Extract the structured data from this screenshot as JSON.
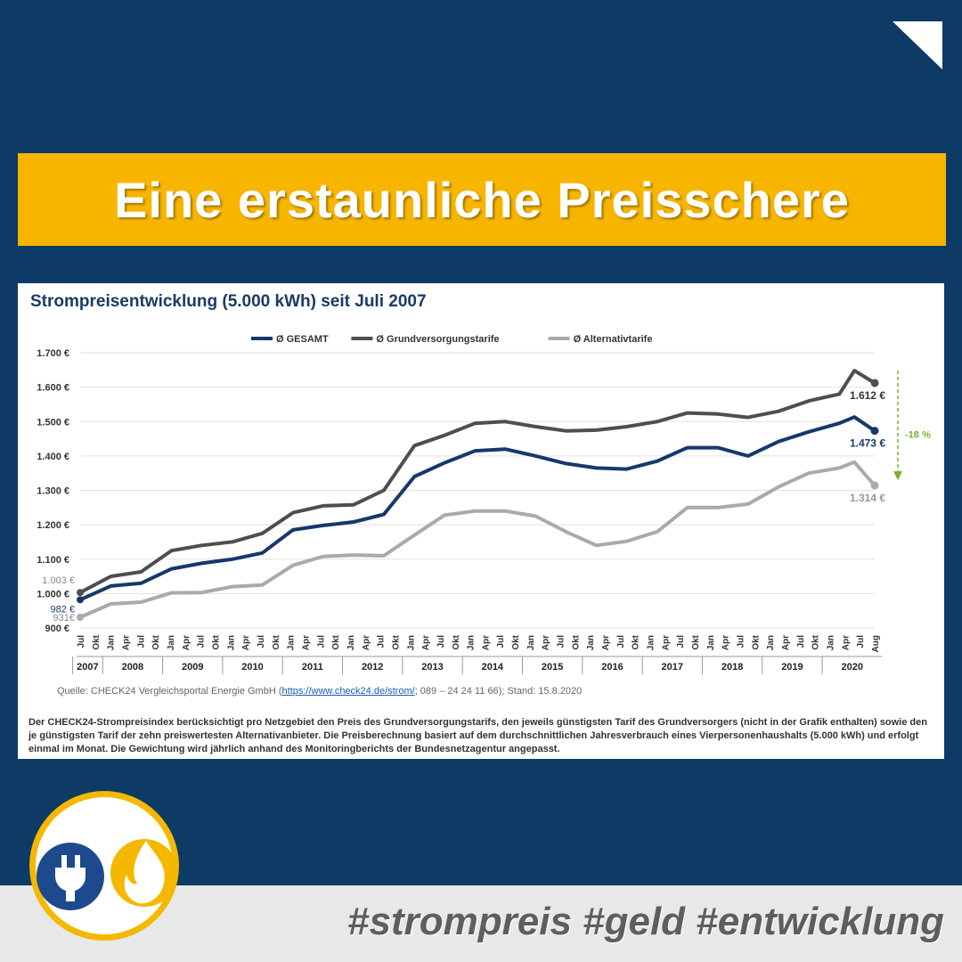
{
  "banner": {
    "title": "Eine erstaunliche Preisschere"
  },
  "chart_data": {
    "type": "line",
    "title": "Strompreisentwicklung (5.000 kWh) seit Juli 2007",
    "ylim": [
      900,
      1700
    ],
    "y_ticks": [
      "900 €",
      "1.000 €",
      "1.100 €",
      "1.200 €",
      "1.300 €",
      "1.400 €",
      "1.500 €",
      "1.600 €",
      "1.700 €"
    ],
    "grid": true,
    "legend_position": "top",
    "x_month_ticks": [
      "Jul",
      "Okt",
      "Jan",
      "Apr",
      "Jul",
      "Okt",
      "Jan",
      "Apr",
      "Jul",
      "Okt",
      "Jan",
      "Apr",
      "Jul",
      "Okt",
      "Jan",
      "Apr",
      "Jul",
      "Okt",
      "Jan",
      "Apr",
      "Jul",
      "Okt",
      "Jan",
      "Apr",
      "Jul",
      "Okt",
      "Jan",
      "Apr",
      "Jul",
      "Okt",
      "Jan",
      "Apr",
      "Jul",
      "Okt",
      "Jan",
      "Apr",
      "Jul",
      "Okt",
      "Jan",
      "Apr",
      "Jul",
      "Okt",
      "Jan",
      "Apr",
      "Jul",
      "Okt",
      "Jan",
      "Apr",
      "Jul",
      "Okt",
      "Jan",
      "Apr",
      "Jul",
      "Aug"
    ],
    "x_years": [
      "2007",
      "2008",
      "2009",
      "2010",
      "2011",
      "2012",
      "2013",
      "2014",
      "2015",
      "2016",
      "2017",
      "2018",
      "2019",
      "2020"
    ],
    "x": [
      "2007-07",
      "2008-01",
      "2008-07",
      "2009-01",
      "2009-07",
      "2010-01",
      "2010-07",
      "2011-01",
      "2011-07",
      "2012-01",
      "2012-07",
      "2013-01",
      "2013-07",
      "2014-01",
      "2014-07",
      "2015-01",
      "2015-07",
      "2016-01",
      "2016-07",
      "2017-01",
      "2017-07",
      "2018-01",
      "2018-07",
      "2019-01",
      "2019-07",
      "2020-01",
      "2020-04",
      "2020-08"
    ],
    "series": [
      {
        "name": "Ø GESAMT",
        "color": "#16386b",
        "values": [
          982,
          1022,
          1030,
          1072,
          1088,
          1100,
          1118,
          1185,
          1198,
          1208,
          1230,
          1340,
          1380,
          1415,
          1420,
          1400,
          1378,
          1365,
          1362,
          1385,
          1424,
          1424,
          1400,
          1442,
          1470,
          1495,
          1513,
          1473
        ]
      },
      {
        "name": "Ø Grundversorgungstarife",
        "color": "#4e4e4e",
        "values": [
          1003,
          1050,
          1063,
          1125,
          1140,
          1150,
          1175,
          1235,
          1255,
          1258,
          1300,
          1430,
          1460,
          1495,
          1500,
          1485,
          1473,
          1475,
          1485,
          1500,
          1525,
          1522,
          1512,
          1530,
          1560,
          1580,
          1648,
          1612
        ]
      },
      {
        "name": "Ø Alternativtarife",
        "color": "#aaaaaa",
        "values": [
          931,
          970,
          975,
          1002,
          1003,
          1020,
          1025,
          1082,
          1108,
          1112,
          1110,
          1170,
          1228,
          1240,
          1240,
          1225,
          1180,
          1140,
          1152,
          1180,
          1250,
          1250,
          1260,
          1310,
          1350,
          1365,
          1382,
          1314
        ]
      }
    ],
    "start_labels": [
      "1.003 €",
      "982 €",
      "931€"
    ],
    "end_labels": [
      "1.612 €",
      "1.473 €",
      "1.314 €"
    ],
    "annotation": "-18 %",
    "annotation_color": "#7ab030"
  },
  "source": {
    "prefix": "Quelle: CHECK24 Vergleichsportal Energie GmbH (",
    "link": "https://www.check24.de/strom/",
    "suffix": "; 089 – 24 24 11 66); Stand: 15.8.2020"
  },
  "note": "Der CHECK24-Strompreisindex berücksichtigt pro Netzgebiet den Preis des Grundversorgungstarifs, den jeweils günstigsten Tarif des Grundversorgers (nicht in der Grafik enthalten) sowie den je günstigsten Tarif der zehn preiswertesten Alternativanbieter. Die Preisberechnung basiert auf dem durchschnittlichen Jahresverbrauch eines Vierpersonenhaushalts (5.000 kWh) und erfolgt einmal im Monat. Die Gewichtung wird jährlich anhand des Monitoringberichts der Bundesnetzagentur angepasst.",
  "footer": {
    "hashtags": "#strompreis #geld #entwicklung"
  },
  "colors": {
    "background": "#0e3a66",
    "banner": "#f7b500",
    "logo_blue": "#1d4a8c",
    "logo_yellow": "#f5b800"
  },
  "icons": {
    "corner": "corner-triangle-icon",
    "plug": "plug-icon",
    "flame": "flame-icon"
  }
}
